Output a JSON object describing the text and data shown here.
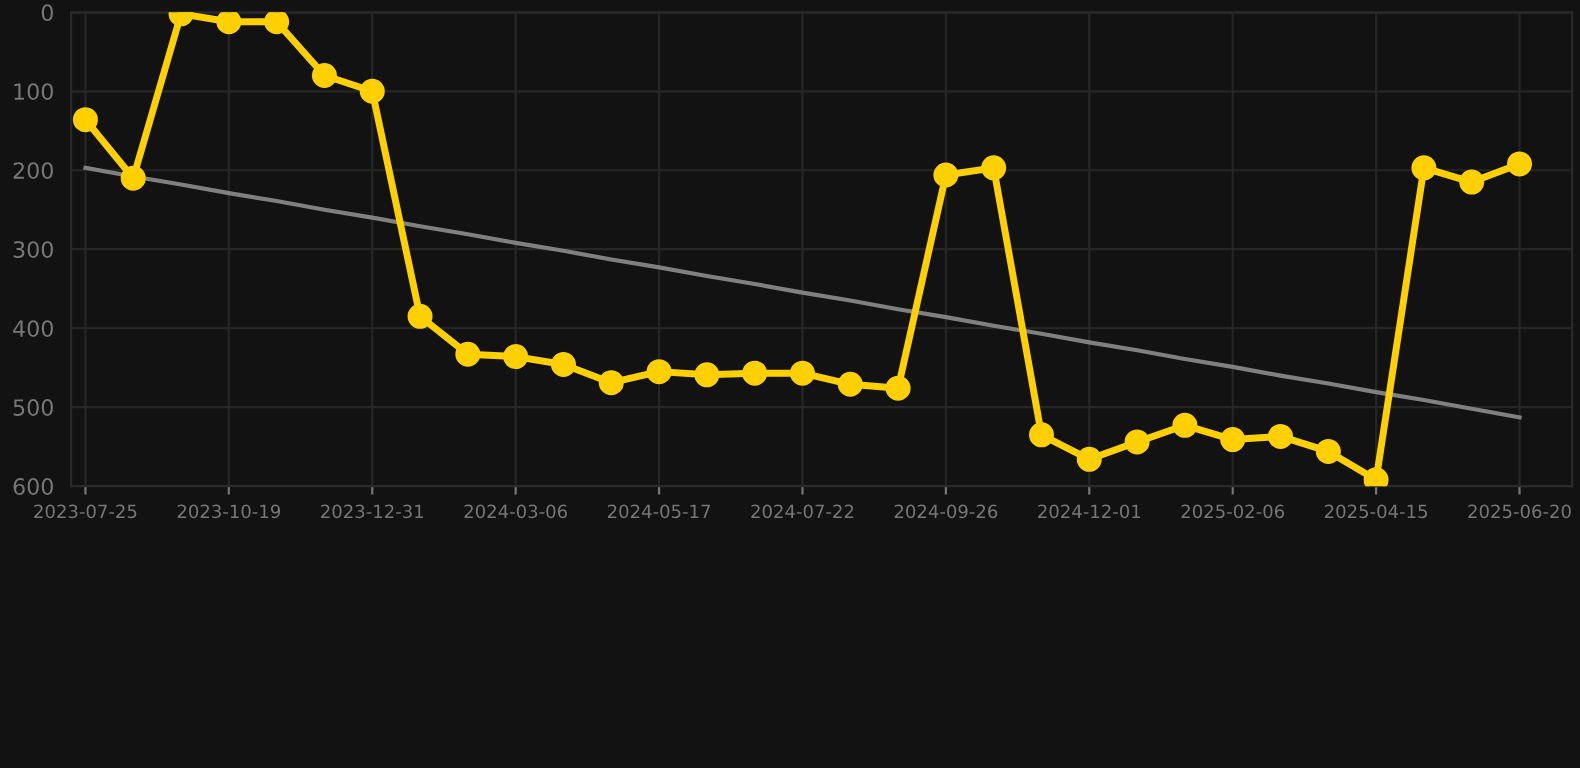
{
  "chart_data": {
    "type": "line",
    "categories": [
      "2023-07-25",
      null,
      null,
      "2023-10-19",
      null,
      null,
      "2023-12-31",
      null,
      null,
      "2024-03-06",
      null,
      null,
      "2024-05-17",
      null,
      null,
      "2024-07-22",
      null,
      null,
      "2024-09-26",
      null,
      null,
      "2024-12-01",
      null,
      null,
      "2025-02-06",
      null,
      null,
      "2025-04-15",
      null,
      null,
      "2025-06-20"
    ],
    "series": [
      {
        "color": "#ffd000",
        "marker": "circle",
        "values": [
          136,
          210,
          2,
          12,
          12,
          80,
          100,
          385,
          433,
          436,
          446,
          469,
          455,
          459,
          457,
          457,
          471,
          476,
          206,
          197,
          535,
          566,
          544,
          523,
          541,
          537,
          556,
          592,
          197,
          215,
          192
        ]
      },
      {
        "type": "line",
        "color": "#808080",
        "marker": "none",
        "values": [
          197,
          208,
          218,
          229,
          239,
          250,
          260,
          271,
          281,
          292,
          302,
          313,
          323,
          334,
          344,
          355,
          365,
          376,
          386,
          397,
          407,
          418,
          428,
          439,
          449,
          460,
          470,
          481,
          491,
          502,
          513
        ]
      }
    ],
    "ylim": [
      600,
      0
    ],
    "yticks": [
      0,
      100,
      200,
      300,
      400,
      500,
      600
    ],
    "grid": true
  }
}
